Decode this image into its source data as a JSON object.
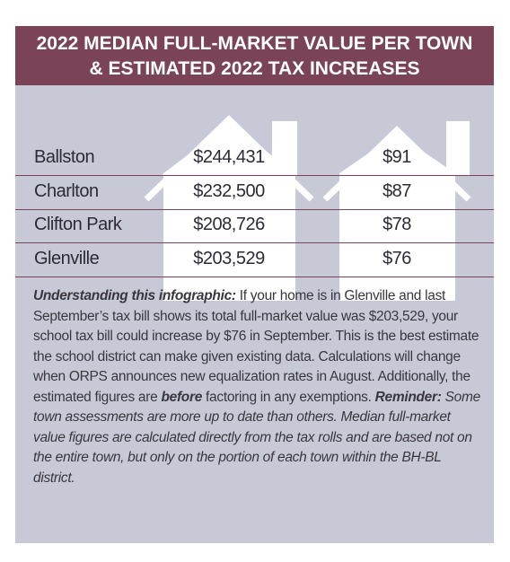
{
  "title": [
    "2022 MEDIAN FULL-MARKET VALUE PER TOWN",
    "& ESTIMATED 2022 TAX INCREASES"
  ],
  "table": {
    "rows": [
      [
        "Ballston",
        "$244,431",
        "$91"
      ],
      [
        "Charlton",
        "$232,500",
        "$87"
      ],
      [
        "Clifton Park",
        "$208,726",
        "$78"
      ],
      [
        "Glenville",
        "$203,529",
        "$76"
      ]
    ]
  },
  "paragraph": [
    {
      "style": "bold-italic",
      "text": "Understanding this infographic:"
    },
    {
      "style": "normal",
      "text": " If your home is in Glenville and last September’s tax bill shows its total full-market value was $203,529, your school tax bill could increase by $76 in September. This is the best estimate the school district can make given existing data. Calculations will change when ORPS announces new equalization rates in August. Additionally, the estimated figures are "
    },
    {
      "style": "bold-italic",
      "text": "before"
    },
    {
      "style": "normal",
      "text": " factoring in any exemptions. "
    },
    {
      "style": "bold-italic",
      "text": "Reminder:"
    },
    {
      "style": "italic",
      "text": " Some town assessments are more up to date than others. Median full-market value figures are calculated directly from the tax rolls and are based not on the entire town, but only on the portion of each town within the BH-BL district."
    }
  ]
}
